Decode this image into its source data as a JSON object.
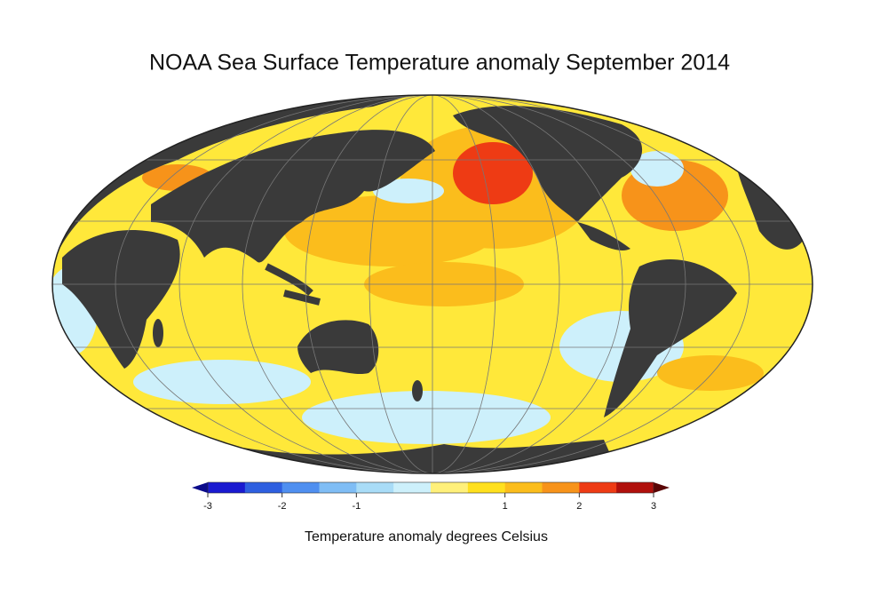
{
  "title": "NOAA Sea Surface Temperature anomaly September 2014",
  "colorbar": {
    "range": [
      -3,
      3
    ],
    "ticks": [
      -3,
      -2,
      -1,
      1,
      2,
      3
    ],
    "colors": [
      "#1a1ad0",
      "#2e5fe0",
      "#4f8ff0",
      "#7fbdf5",
      "#a9dcf7",
      "#cdf0fb",
      "#fff07a",
      "#ffe01e",
      "#fbbd1c",
      "#f7931a",
      "#ee3b14",
      "#b0100c"
    ],
    "under_color": "#0a0a8a",
    "over_color": "#5a0505",
    "label": "Temperature anomaly degrees Celsius"
  }
}
